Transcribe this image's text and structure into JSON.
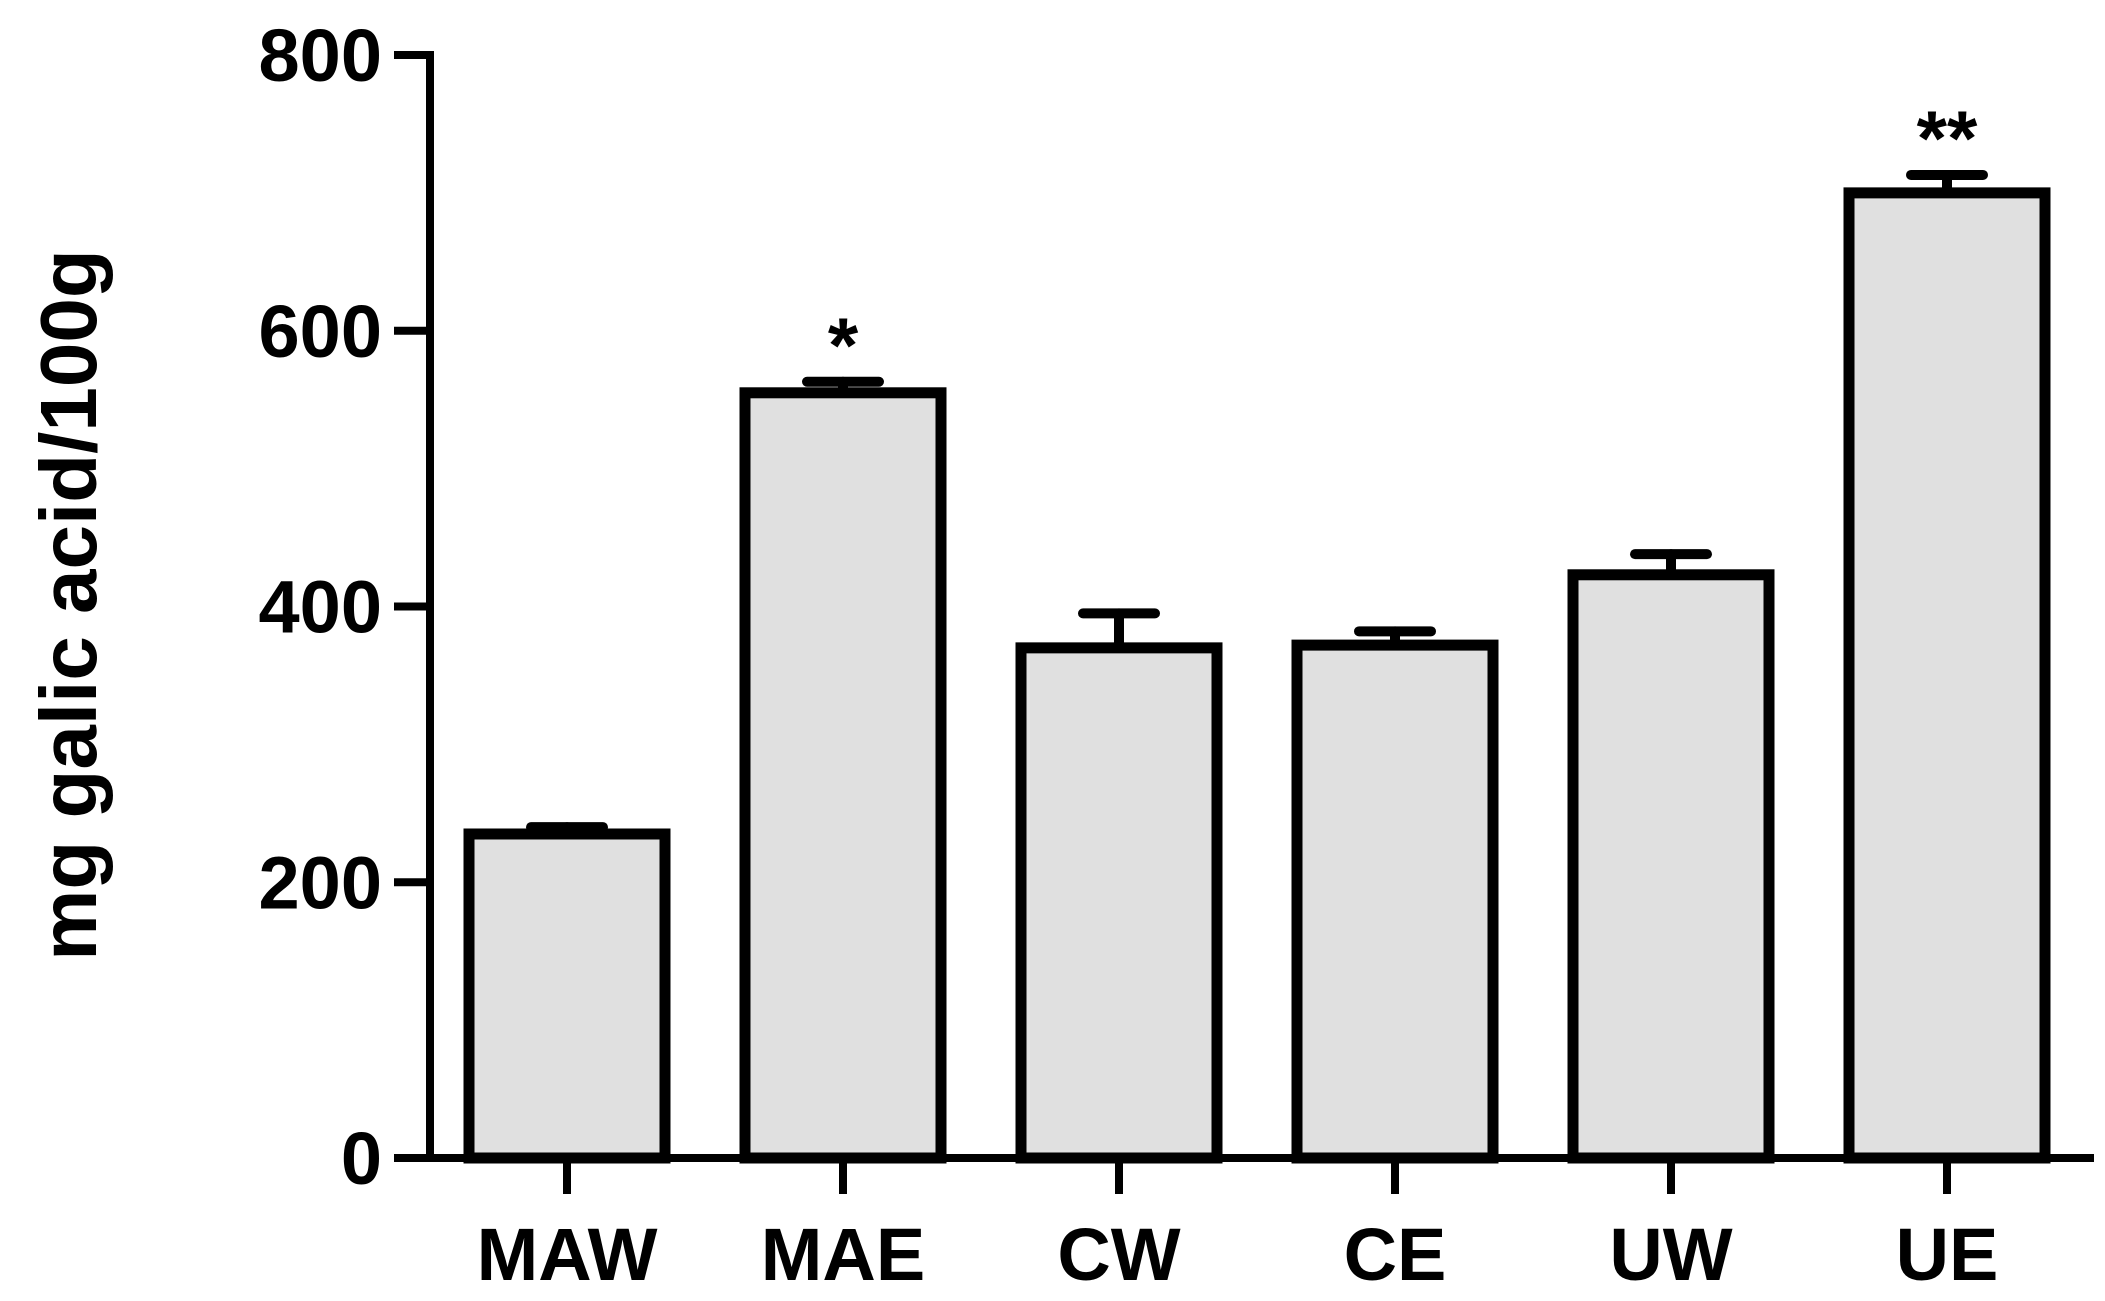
{
  "chart_data": {
    "type": "bar",
    "title": "",
    "xlabel": "",
    "ylabel": "mg galic acid/100g",
    "ylim": [
      0,
      800
    ],
    "yticks": [
      0,
      200,
      400,
      600,
      800
    ],
    "categories": [
      "MAW",
      "MAE",
      "CW",
      "CE",
      "UW",
      "UE"
    ],
    "values": [
      235,
      555,
      370,
      372,
      423,
      700
    ],
    "errors": [
      5,
      8,
      25,
      10,
      15,
      13
    ],
    "annotations": [
      "",
      "*",
      "",
      "",
      "",
      "**"
    ],
    "bar_color": "#e0e0e0",
    "grid": false,
    "legend": "none"
  }
}
